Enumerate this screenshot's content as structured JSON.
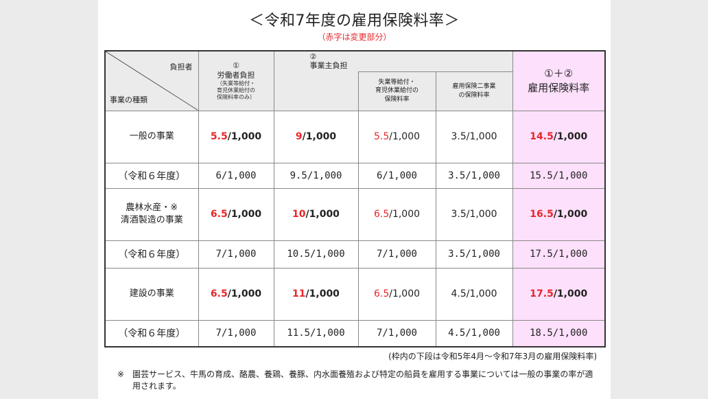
{
  "title": "＜令和7年度の雇用保険料率＞",
  "subtitle": "（赤字は変更部分）",
  "header": {
    "burden": "負担者",
    "category": "事業の種類",
    "worker_num": "①",
    "worker_label": "労働者負担",
    "worker_note_1": "（失業等給付・",
    "worker_note_2": "育児休業給付の",
    "worker_note_3": "保険料率のみ）",
    "employer_num": "②",
    "employer_label": "事業主負担",
    "unemp_1": "失業等給付・",
    "unemp_2": "育児休業給付の",
    "unemp_3": "保険料率",
    "two_1": "雇用保険二事業",
    "two_2": "の保険料率",
    "total_num": "①＋②",
    "total_label": "雇用保険料率"
  },
  "rows": [
    {
      "category_1": "一般の事業",
      "category_2": "",
      "worker_red": "5.5",
      "worker_rest": "/1,000",
      "employer_red": "9",
      "employer_rest": "/1,000",
      "unemp_red": "5.5",
      "unemp_rest": "/1,000",
      "two": "3.5/1,000",
      "total_red": "14.5",
      "total_rest": "/1,000",
      "prev_label": "（令和６年度）",
      "prev_worker": "6/1,000",
      "prev_employer": "9.5/1,000",
      "prev_unemp": "6/1,000",
      "prev_two": "3.5/1,000",
      "prev_total": "15.5/1,000"
    },
    {
      "category_1": "農林水産・※",
      "category_2": "清酒製造の事業",
      "worker_red": "6.5",
      "worker_rest": "/1,000",
      "employer_red": "10",
      "employer_rest": "/1,000",
      "unemp_red": "6.5",
      "unemp_rest": "/1,000",
      "two": "3.5/1,000",
      "total_red": "16.5",
      "total_rest": "/1,000",
      "prev_label": "（令和６年度）",
      "prev_worker": "7/1,000",
      "prev_employer": "10.5/1,000",
      "prev_unemp": "7/1,000",
      "prev_two": "3.5/1,000",
      "prev_total": "17.5/1,000"
    },
    {
      "category_1": "建設の事業",
      "category_2": "",
      "worker_red": "6.5",
      "worker_rest": "/1,000",
      "employer_red": "11",
      "employer_rest": "/1,000",
      "unemp_red": "6.5",
      "unemp_rest": "/1,000",
      "two": "4.5/1,000",
      "total_red": "17.5",
      "total_rest": "/1,000",
      "prev_label": "（令和６年度）",
      "prev_worker": "7/1,000",
      "prev_employer": "11.5/1,000",
      "prev_unemp": "7/1,000",
      "prev_two": "4.5/1,000",
      "prev_total": "18.5/1,000"
    }
  ],
  "note_period": "(枠内の下段は令和5年4月～令和7年3月の雇用保険料率)",
  "footnote_mark": "※",
  "footnote": "園芸サービス、牛馬の育成、酪農、養鶏、養豚、内水面養殖および特定の船員を雇用する事業については一般の事業の率が適用されます。",
  "colors": {
    "red": "#e8262a",
    "pink": "#fde0fb",
    "header_gray": "#ebebeb"
  }
}
